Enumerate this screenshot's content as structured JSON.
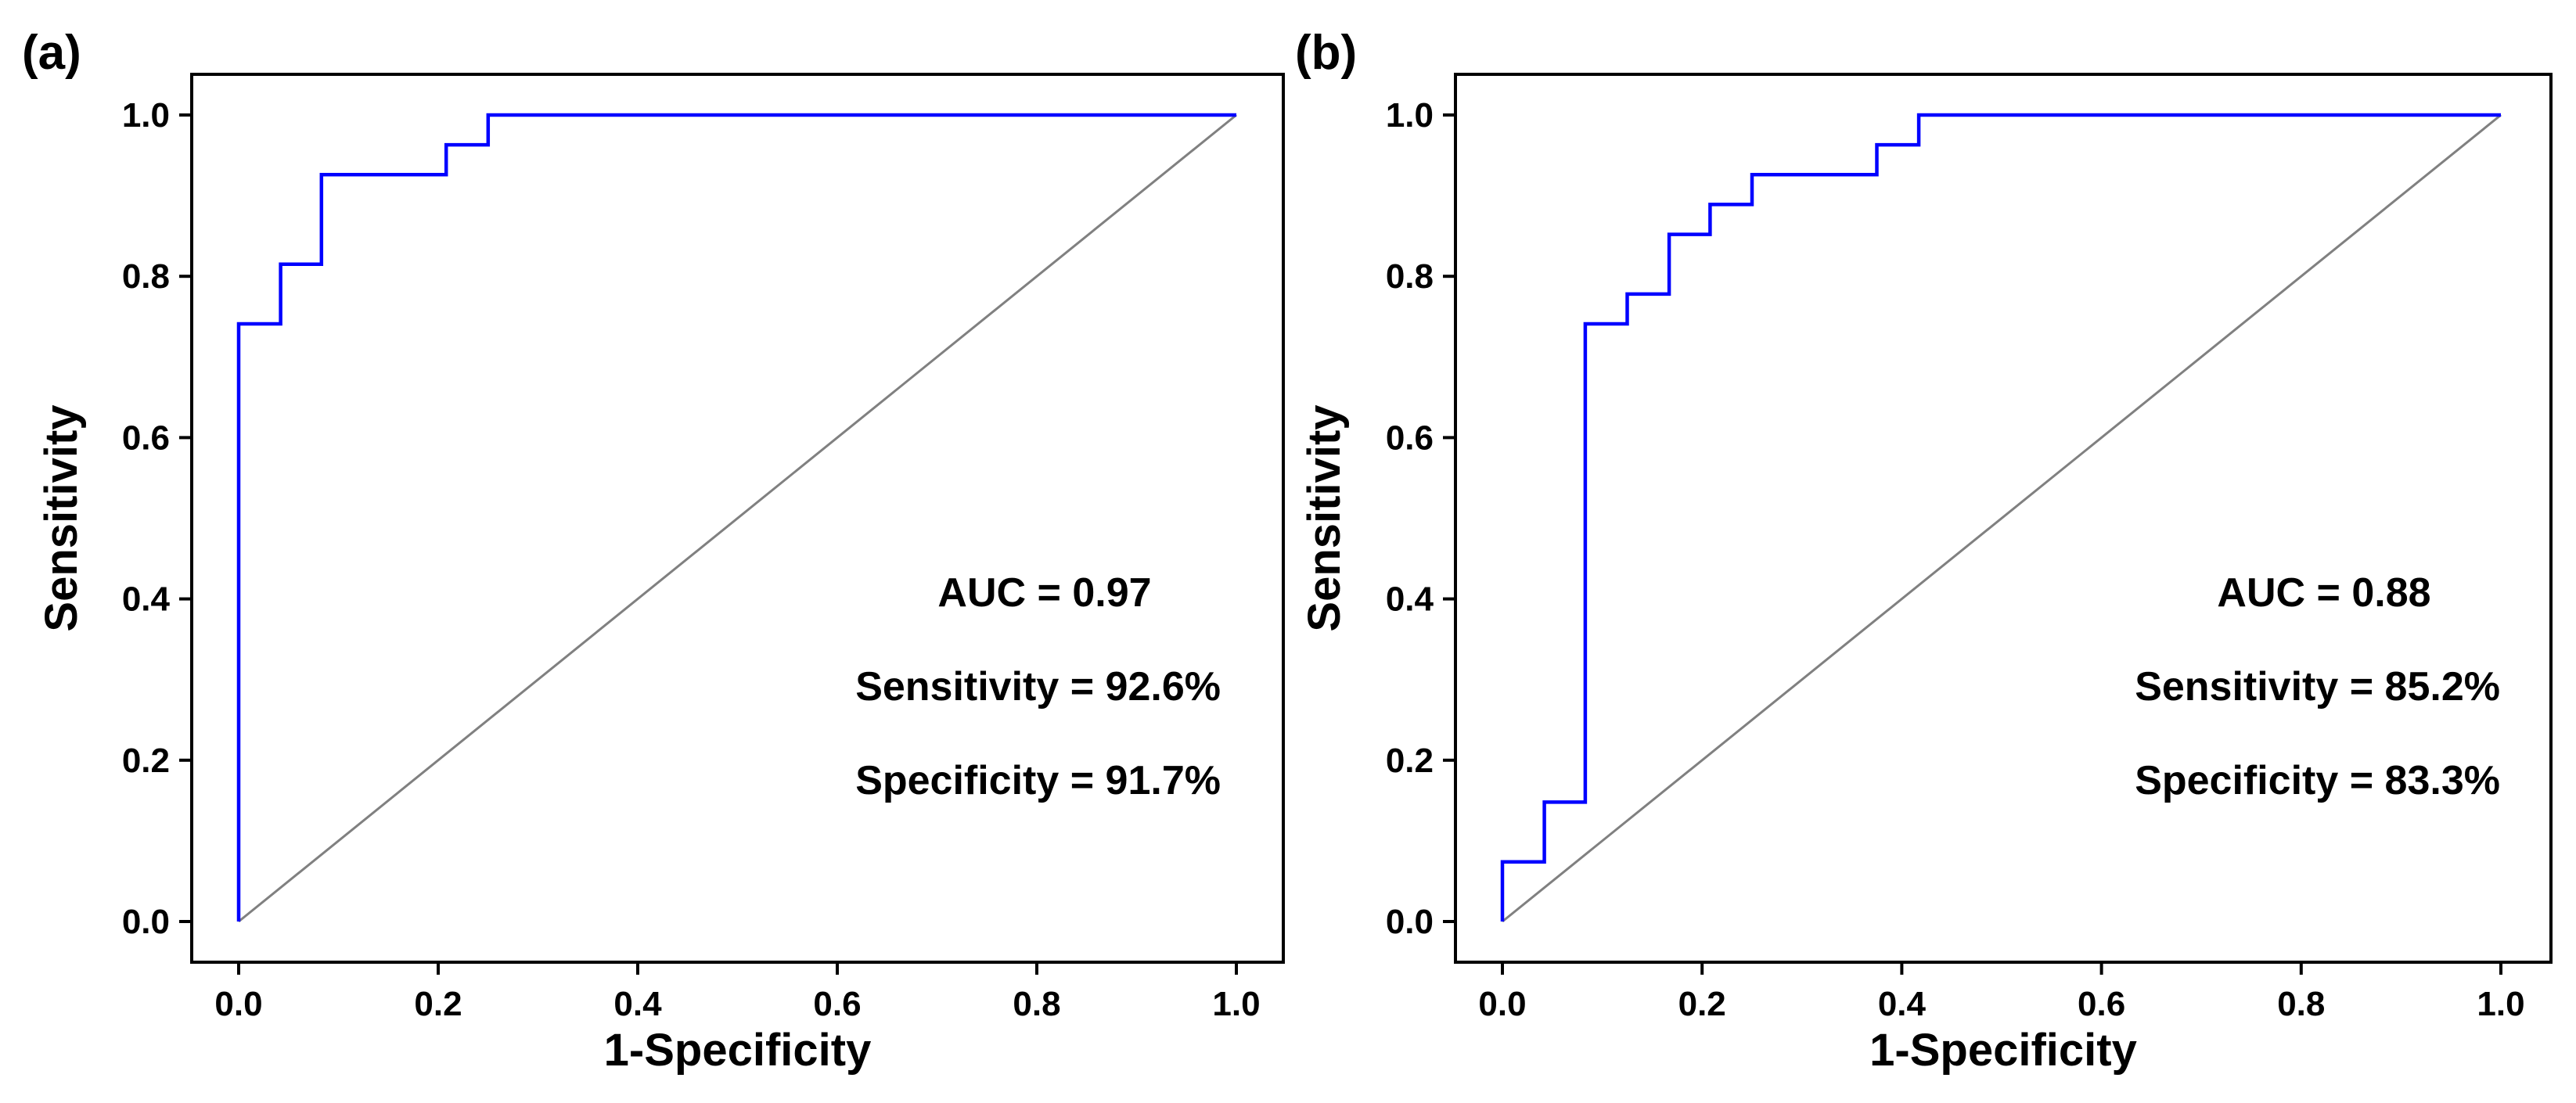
{
  "chart_data": [
    {
      "type": "line",
      "panel_label": "(a)",
      "xlabel": "1-Specificity",
      "ylabel": "Sensitivity",
      "xlim": [
        0.0,
        1.0
      ],
      "ylim": [
        0.0,
        1.0
      ],
      "xticks": [
        "0.0",
        "0.2",
        "0.4",
        "0.6",
        "0.8",
        "1.0"
      ],
      "yticks": [
        "0.0",
        "0.2",
        "0.4",
        "0.6",
        "0.8",
        "1.0"
      ],
      "grid": false,
      "series": [
        {
          "name": "ROC",
          "color": "#0000ff",
          "x": [
            0,
            0,
            0.042,
            0.042,
            0.083,
            0.083,
            0.208,
            0.208,
            0.25,
            0.25,
            1.0
          ],
          "y": [
            0,
            0.741,
            0.741,
            0.815,
            0.815,
            0.926,
            0.926,
            0.963,
            0.963,
            1.0,
            1.0
          ]
        },
        {
          "name": "Reference",
          "color": "#808080",
          "x": [
            0,
            1
          ],
          "y": [
            0,
            1
          ]
        }
      ],
      "annotations": [
        "AUC = 0.97",
        "Sensitivity = 92.6%",
        "Specificity = 91.7%"
      ]
    },
    {
      "type": "line",
      "panel_label": "(b)",
      "xlabel": "1-Specificity",
      "ylabel": "Sensitivity",
      "xlim": [
        0.0,
        1.0
      ],
      "ylim": [
        0.0,
        1.0
      ],
      "xticks": [
        "0.0",
        "0.2",
        "0.4",
        "0.6",
        "0.8",
        "1.0"
      ],
      "yticks": [
        "0.0",
        "0.2",
        "0.4",
        "0.6",
        "0.8",
        "1.0"
      ],
      "grid": false,
      "series": [
        {
          "name": "ROC",
          "color": "#0000ff",
          "x": [
            0,
            0,
            0.042,
            0.042,
            0.083,
            0.083,
            0.125,
            0.125,
            0.167,
            0.167,
            0.208,
            0.208,
            0.25,
            0.25,
            0.375,
            0.375,
            0.417,
            0.417,
            1.0
          ],
          "y": [
            0,
            0.074,
            0.074,
            0.148,
            0.148,
            0.741,
            0.741,
            0.778,
            0.778,
            0.852,
            0.852,
            0.889,
            0.889,
            0.926,
            0.926,
            0.963,
            0.963,
            1.0,
            1.0
          ]
        },
        {
          "name": "Reference",
          "color": "#808080",
          "x": [
            0,
            1
          ],
          "y": [
            0,
            1
          ]
        }
      ],
      "annotations": [
        "AUC = 0.88",
        "Sensitivity = 85.2%",
        "Specificity = 83.3%"
      ]
    }
  ]
}
